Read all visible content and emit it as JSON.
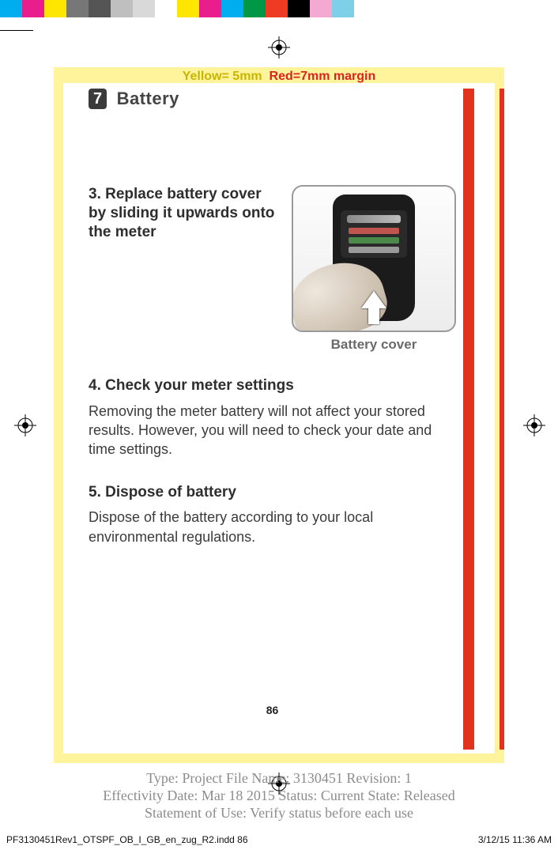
{
  "colorbar": {
    "swatch_width": 28,
    "swatches": [
      "#00adee",
      "#e91e8c",
      "#ffe600",
      "#777777",
      "#555555",
      "#bfbfbf",
      "#d9d9d9",
      "#ffffff",
      "#ffe600",
      "#e91e8c",
      "#00adee",
      "#009846",
      "#ef3b24",
      "#000000",
      "#f4a9d2",
      "#7ecfe8"
    ]
  },
  "margin_note": {
    "yellow": "Yellow= 5mm",
    "red": "Red=7mm margin",
    "yellow_color": "#c9b500",
    "red_color": "#d22"
  },
  "section": {
    "number": "7",
    "title": "Battery"
  },
  "step3": {
    "title": "3. Replace battery cover by sliding it upwards onto the meter"
  },
  "illustration": {
    "caption": "Battery cover",
    "border_color": "#9a9a9a"
  },
  "step4": {
    "title": "4. Check your meter settings",
    "body": "Removing the meter battery will not affect your stored results. However, you will need to check your date and time settings."
  },
  "step5": {
    "title": "5. Dispose of battery",
    "body": "Dispose of the battery according to your local environmental regulations."
  },
  "page_number": "86",
  "meta": {
    "line1": "Type: Project File  Name: 3130451  Revision: 1",
    "line2": "Effectivity Date: Mar 18 2015      Status: Current     State: Released",
    "line3": "Statement of Use: Verify status before each use"
  },
  "footer": {
    "left": "PF3130451Rev1_OTSPF_OB_I_GB_en_zug_R2.indd   86",
    "right": "3/12/15   11:36 AM"
  },
  "accent": {
    "red_tab": "#e0341f",
    "yellow_frame": "#fff49c"
  }
}
